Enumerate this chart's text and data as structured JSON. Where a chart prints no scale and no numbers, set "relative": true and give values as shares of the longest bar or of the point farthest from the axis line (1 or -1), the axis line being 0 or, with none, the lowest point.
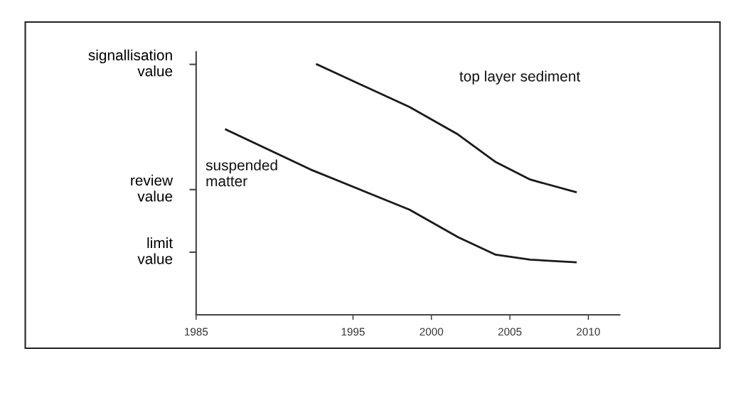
{
  "chart_data": {
    "type": "line",
    "relative": true,
    "xlim": [
      1985,
      2012
    ],
    "xticks": [
      1985,
      1995,
      2000,
      2005,
      2010
    ],
    "ref_lines": [
      {
        "axis": "y",
        "value": 0.25,
        "label": "limit\nvalue"
      },
      {
        "axis": "y",
        "value": 0.5,
        "label": "review\nvalue"
      },
      {
        "axis": "y",
        "value": 1.0,
        "label": "signallisation\nvalue"
      }
    ],
    "grid": false,
    "legend": false,
    "marker": "none",
    "line_style": "solid",
    "series": [
      {
        "name": "top layer sediment",
        "color": "#1a1a1a",
        "x": [
          1992.7,
          1998.6,
          2001.7,
          2004.1,
          2006.3,
          2009.2
        ],
        "values": [
          1.0,
          0.83,
          0.72,
          0.61,
          0.54,
          0.49
        ]
      },
      {
        "name": "suspended\nmatter",
        "color": "#1a1a1a",
        "x": [
          1986.9,
          1992.3,
          1998.6,
          2001.7,
          2004.1,
          2006.3,
          2009.2
        ],
        "values": [
          0.74,
          0.58,
          0.42,
          0.31,
          0.24,
          0.22,
          0.21
        ]
      }
    ]
  }
}
